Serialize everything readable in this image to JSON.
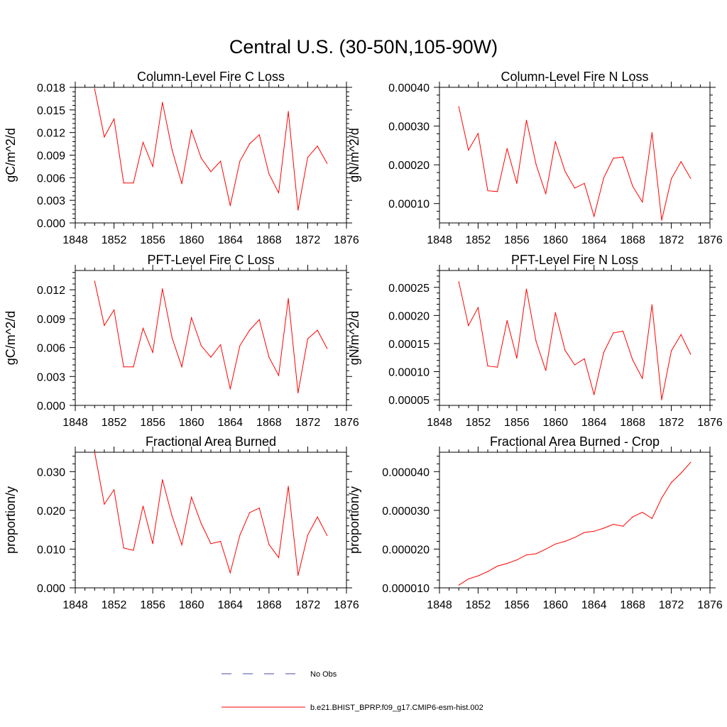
{
  "figure_title": "Central U.S. (30-50N,105-90W)",
  "colors": {
    "model_line": "#ff0000",
    "obs_line": "#4a4aa8",
    "axis": "#000000"
  },
  "legend": {
    "obs_label": "No Obs",
    "model_label": "b.e21.BHIST_BPRP.f09_g17.CMIP6-esm-hist.002"
  },
  "chart_data": [
    {
      "type": "line",
      "title": "Column-Level Fire C Loss",
      "ylabel": "gC/m^2/d",
      "xlabel": "",
      "xlim": [
        1848,
        1876
      ],
      "ylim": [
        0,
        0.018
      ],
      "xticks": [
        1848,
        1852,
        1856,
        1860,
        1864,
        1868,
        1872,
        1876
      ],
      "xtick_labels": [
        "1848",
        "1852",
        "1856",
        "1860",
        "1864",
        "1868",
        "1872",
        "1876"
      ],
      "yticks": [
        0,
        0.003,
        0.006,
        0.009,
        0.012,
        0.015,
        0.018
      ],
      "ytick_labels": [
        "0.000",
        "0.003",
        "0.006",
        "0.009",
        "0.012",
        "0.015",
        "0.018"
      ],
      "x": [
        1850,
        1851,
        1852,
        1853,
        1854,
        1855,
        1856,
        1857,
        1858,
        1859,
        1860,
        1861,
        1862,
        1863,
        1864,
        1865,
        1866,
        1867,
        1868,
        1869,
        1870,
        1871,
        1872,
        1873,
        1874
      ],
      "series": [
        {
          "name": "b.e21.BHIST_BPRP.f09_g17.CMIP6-esm-hist.002",
          "values": [
            0.0178,
            0.0114,
            0.0138,
            0.0053,
            0.0053,
            0.0107,
            0.0075,
            0.016,
            0.0097,
            0.0052,
            0.0123,
            0.0086,
            0.0068,
            0.0082,
            0.0023,
            0.0082,
            0.0105,
            0.0117,
            0.0065,
            0.004,
            0.0148,
            0.0017,
            0.0087,
            0.0102,
            0.0079
          ]
        }
      ]
    },
    {
      "type": "line",
      "title": "Column-Level Fire N Loss",
      "ylabel": "gN/m^2/d",
      "xlabel": "",
      "xlim": [
        1848,
        1876
      ],
      "ylim": [
        5e-05,
        0.0004
      ],
      "xticks": [
        1848,
        1852,
        1856,
        1860,
        1864,
        1868,
        1872,
        1876
      ],
      "xtick_labels": [
        "1848",
        "1852",
        "1856",
        "1860",
        "1864",
        "1868",
        "1872",
        "1876"
      ],
      "yticks": [
        0.0001,
        0.0002,
        0.0003,
        0.0004
      ],
      "ytick_labels": [
        "0.00010",
        "0.00020",
        "0.00030",
        "0.00040"
      ],
      "x": [
        1850,
        1851,
        1852,
        1853,
        1854,
        1855,
        1856,
        1857,
        1858,
        1859,
        1860,
        1861,
        1862,
        1863,
        1864,
        1865,
        1866,
        1867,
        1868,
        1869,
        1870,
        1871,
        1872,
        1873,
        1874
      ],
      "series": [
        {
          "name": "b.e21.BHIST_BPRP.f09_g17.CMIP6-esm-hist.002",
          "values": [
            0.00035,
            0.000238,
            0.000281,
            0.000133,
            0.000131,
            0.000242,
            0.000152,
            0.000315,
            0.000201,
            0.000125,
            0.00026,
            0.000183,
            0.00014,
            0.000152,
            6.7e-05,
            0.000166,
            0.000217,
            0.00022,
            0.000145,
            0.000104,
            0.000283,
            5.7e-05,
            0.000164,
            0.000208,
            0.000165
          ]
        }
      ]
    },
    {
      "type": "line",
      "title": "PFT-Level Fire C Loss",
      "ylabel": "gC/m^2/d",
      "xlabel": "",
      "xlim": [
        1848,
        1876
      ],
      "ylim": [
        0,
        0.014
      ],
      "xticks": [
        1848,
        1852,
        1856,
        1860,
        1864,
        1868,
        1872,
        1876
      ],
      "xtick_labels": [
        "1848",
        "1852",
        "1856",
        "1860",
        "1864",
        "1868",
        "1872",
        "1876"
      ],
      "yticks": [
        0,
        0.003,
        0.006,
        0.009,
        0.012
      ],
      "ytick_labels": [
        "0.000",
        "0.003",
        "0.006",
        "0.009",
        "0.012"
      ],
      "x": [
        1850,
        1851,
        1852,
        1853,
        1854,
        1855,
        1856,
        1857,
        1858,
        1859,
        1860,
        1861,
        1862,
        1863,
        1864,
        1865,
        1866,
        1867,
        1868,
        1869,
        1870,
        1871,
        1872,
        1873,
        1874
      ],
      "series": [
        {
          "name": "b.e21.BHIST_BPRP.f09_g17.CMIP6-esm-hist.002",
          "values": [
            0.0129,
            0.0083,
            0.0099,
            0.004,
            0.004,
            0.008,
            0.0055,
            0.0121,
            0.007,
            0.004,
            0.0091,
            0.0062,
            0.005,
            0.0063,
            0.0017,
            0.0062,
            0.0078,
            0.0089,
            0.005,
            0.0031,
            0.0111,
            0.0013,
            0.0069,
            0.0078,
            0.0059
          ]
        }
      ]
    },
    {
      "type": "line",
      "title": "PFT-Level Fire N Loss",
      "ylabel": "gN/m^2/d",
      "xlabel": "",
      "xlim": [
        1848,
        1876
      ],
      "ylim": [
        4e-05,
        0.00028
      ],
      "xticks": [
        1848,
        1852,
        1856,
        1860,
        1864,
        1868,
        1872,
        1876
      ],
      "xtick_labels": [
        "1848",
        "1852",
        "1856",
        "1860",
        "1864",
        "1868",
        "1872",
        "1876"
      ],
      "yticks": [
        5e-05,
        0.0001,
        0.00015,
        0.0002,
        0.00025
      ],
      "ytick_labels": [
        "0.00005",
        "0.00010",
        "0.00015",
        "0.00020",
        "0.00025"
      ],
      "x": [
        1850,
        1851,
        1852,
        1853,
        1854,
        1855,
        1856,
        1857,
        1858,
        1859,
        1860,
        1861,
        1862,
        1863,
        1864,
        1865,
        1866,
        1867,
        1868,
        1869,
        1870,
        1871,
        1872,
        1873,
        1874
      ],
      "series": [
        {
          "name": "b.e21.BHIST_BPRP.f09_g17.CMIP6-esm-hist.002",
          "values": [
            0.00026,
            0.000182,
            0.000214,
            0.00011,
            0.000108,
            0.000191,
            0.000124,
            0.000247,
            0.000154,
            0.000102,
            0.000205,
            0.000138,
            0.000112,
            0.000123,
            5.9e-05,
            0.000134,
            0.000169,
            0.000172,
            0.000121,
            8.8e-05,
            0.000219,
            5e-05,
            0.000137,
            0.000166,
            0.000131
          ]
        }
      ]
    },
    {
      "type": "line",
      "title": "Fractional Area Burned",
      "ylabel": "proportion/y",
      "xlabel": "",
      "xlim": [
        1848,
        1876
      ],
      "ylim": [
        0,
        0.035
      ],
      "xticks": [
        1848,
        1852,
        1856,
        1860,
        1864,
        1868,
        1872,
        1876
      ],
      "xtick_labels": [
        "1848",
        "1852",
        "1856",
        "1860",
        "1864",
        "1868",
        "1872",
        "1876"
      ],
      "yticks": [
        0,
        0.01,
        0.02,
        0.03
      ],
      "ytick_labels": [
        "0.000",
        "0.010",
        "0.020",
        "0.030"
      ],
      "x": [
        1850,
        1851,
        1852,
        1853,
        1854,
        1855,
        1856,
        1857,
        1858,
        1859,
        1860,
        1861,
        1862,
        1863,
        1864,
        1865,
        1866,
        1867,
        1868,
        1869,
        1870,
        1871,
        1872,
        1873,
        1874
      ],
      "series": [
        {
          "name": "b.e21.BHIST_BPRP.f09_g17.CMIP6-esm-hist.002",
          "values": [
            0.035,
            0.0216,
            0.0253,
            0.0103,
            0.0097,
            0.0211,
            0.0114,
            0.0279,
            0.0185,
            0.0111,
            0.0234,
            0.0166,
            0.0114,
            0.012,
            0.0039,
            0.0136,
            0.0194,
            0.0206,
            0.0112,
            0.0078,
            0.0262,
            0.0032,
            0.0136,
            0.0183,
            0.0135
          ]
        }
      ]
    },
    {
      "type": "line",
      "title": "Fractional Area Burned - Crop",
      "ylabel": "proportion/y",
      "xlabel": "",
      "xlim": [
        1848,
        1876
      ],
      "ylim": [
        1e-05,
        4.5e-05
      ],
      "xticks": [
        1848,
        1852,
        1856,
        1860,
        1864,
        1868,
        1872,
        1876
      ],
      "xtick_labels": [
        "1848",
        "1852",
        "1856",
        "1860",
        "1864",
        "1868",
        "1872",
        "1876"
      ],
      "yticks": [
        1e-05,
        2e-05,
        3e-05,
        4e-05
      ],
      "ytick_labels": [
        "0.000010",
        "0.000020",
        "0.000030",
        "0.000040"
      ],
      "x": [
        1850,
        1851,
        1852,
        1853,
        1854,
        1855,
        1856,
        1857,
        1858,
        1859,
        1860,
        1861,
        1862,
        1863,
        1864,
        1865,
        1866,
        1867,
        1868,
        1869,
        1870,
        1871,
        1872,
        1873,
        1874
      ],
      "series": [
        {
          "name": "b.e21.BHIST_BPRP.f09_g17.CMIP6-esm-hist.002",
          "values": [
            1.07e-05,
            1.23e-05,
            1.31e-05,
            1.42e-05,
            1.56e-05,
            1.63e-05,
            1.72e-05,
            1.85e-05,
            1.88e-05,
            2e-05,
            2.13e-05,
            2.2e-05,
            2.3e-05,
            2.43e-05,
            2.46e-05,
            2.54e-05,
            2.64e-05,
            2.59e-05,
            2.83e-05,
            2.95e-05,
            2.79e-05,
            3.32e-05,
            3.72e-05,
            3.96e-05,
            4.24e-05
          ]
        }
      ]
    }
  ]
}
